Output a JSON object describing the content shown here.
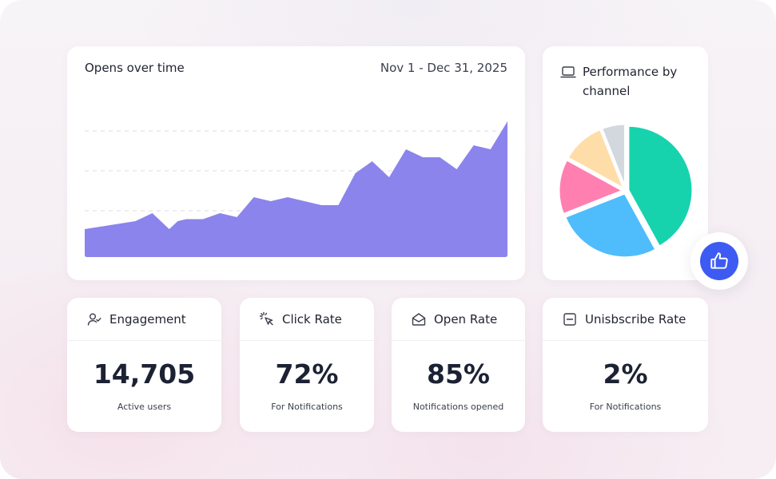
{
  "area_chart": {
    "title": "Opens over time",
    "date_range": "Nov 1 - Dec 31, 2025"
  },
  "pie_panel": {
    "title_line1": "Performance by",
    "title_line2": "channel",
    "icon": "laptop-icon"
  },
  "colors": {
    "area_fill": "#8b84ec",
    "gridline": "#dcdde3",
    "accent_blue": "#3d5bf2"
  },
  "stats": [
    {
      "label": "Engagement",
      "value": "14,705",
      "sub": "Active users",
      "icon": "user-check-icon"
    },
    {
      "label": "Click Rate",
      "value": "72%",
      "sub": "For Notifications",
      "icon": "cursor-click-icon"
    },
    {
      "label": "Open Rate",
      "value": "85%",
      "sub": "Notifications opened",
      "icon": "open-envelope-icon"
    },
    {
      "label": "Unisbscribe Rate",
      "value": "2%",
      "sub": "For Notifications",
      "icon": "minus-square-icon"
    }
  ],
  "like_button": {
    "icon": "thumbs-up-icon"
  },
  "chart_data": [
    {
      "type": "area",
      "title": "Opens over time",
      "xlabel": "Nov 1 - Dec 31, 2025",
      "ylabel": "",
      "grid": true,
      "x": [
        0,
        1.5,
        3,
        4,
        5,
        5.5,
        6,
        7,
        8,
        9,
        10,
        11,
        12,
        13,
        14,
        15,
        16,
        17,
        18,
        19,
        20,
        21,
        22,
        23,
        24,
        25
      ],
      "values": [
        7,
        8,
        9,
        11,
        7,
        9,
        9.5,
        9.5,
        11,
        10,
        15,
        14,
        15,
        14,
        13,
        13,
        21,
        24,
        20,
        27,
        25,
        25,
        22,
        28,
        27,
        34
      ],
      "ylim": [
        0,
        40
      ]
    },
    {
      "type": "pie",
      "title": "Performance by channel",
      "series": [
        {
          "name": "Green",
          "value": 42,
          "color": "#16d3ad"
        },
        {
          "name": "Blue",
          "value": 27,
          "color": "#4fbdfb"
        },
        {
          "name": "Pink",
          "value": 14,
          "color": "#ff7fb1"
        },
        {
          "name": "Peach",
          "value": 11,
          "color": "#ffdda8"
        },
        {
          "name": "Gray",
          "value": 6,
          "color": "#d3d8df"
        }
      ]
    }
  ]
}
